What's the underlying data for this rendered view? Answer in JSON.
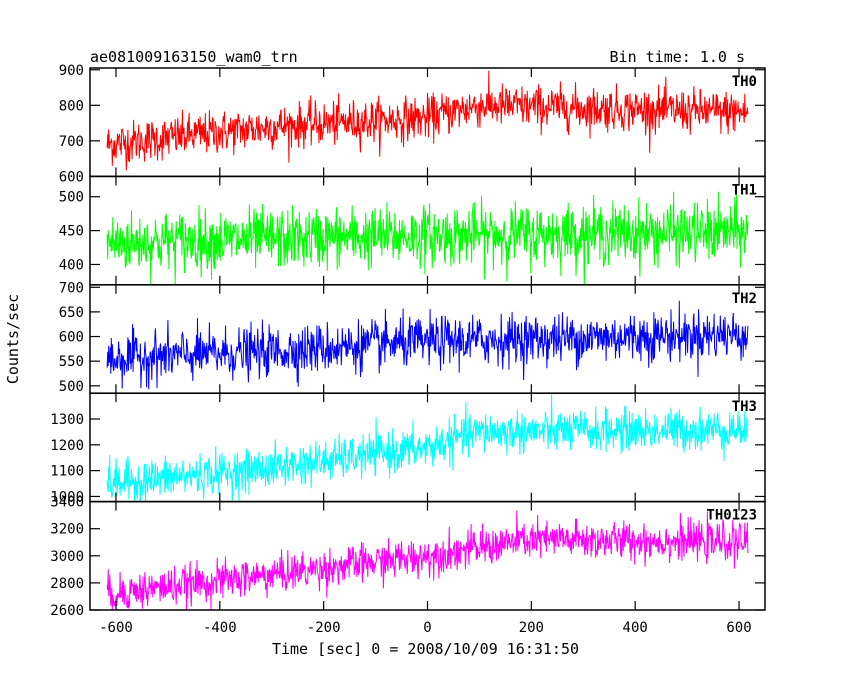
{
  "chart_data": {
    "type": "line",
    "title": "ae081009163150_wam0_trn",
    "subtitle": "Bin time: 1.0 s",
    "xlabel": "Time [sec] 0 = 2008/10/09 16:31:50",
    "ylabel": "Counts/sec",
    "xlim": [
      -650,
      650
    ],
    "x_ticks": [
      -600,
      -400,
      -200,
      0,
      200,
      400,
      600
    ],
    "x_range_data": [
      -617,
      617
    ],
    "grid": false,
    "panels": [
      {
        "name": "TH0",
        "color": "#ff0000",
        "ylim": [
          600,
          905
        ],
        "yticks": [
          600,
          700,
          800,
          900
        ],
        "trend": [
          [
            -617,
            690
          ],
          [
            -300,
            740
          ],
          [
            0,
            765
          ],
          [
            100,
            800
          ],
          [
            617,
            780
          ]
        ],
        "noise_sd": 30
      },
      {
        "name": "TH1",
        "color": "#00ff00",
        "ylim": [
          370,
          530
        ],
        "yticks": [
          400,
          450,
          500
        ],
        "trend": [
          [
            -617,
            432
          ],
          [
            0,
            443
          ],
          [
            617,
            448
          ]
        ],
        "noise_sd": 22
      },
      {
        "name": "TH2",
        "color": "#0000ff",
        "ylim": [
          485,
          705
        ],
        "yticks": [
          500,
          550,
          600,
          650,
          700
        ],
        "trend": [
          [
            -617,
            555
          ],
          [
            -300,
            570
          ],
          [
            0,
            590
          ],
          [
            617,
            605
          ]
        ],
        "noise_sd": 25
      },
      {
        "name": "TH3",
        "color": "#00ffff",
        "ylim": [
          980,
          1400
        ],
        "yticks": [
          1000,
          1100,
          1200,
          1300
        ],
        "trend": [
          [
            -617,
            1050
          ],
          [
            -300,
            1110
          ],
          [
            0,
            1190
          ],
          [
            100,
            1250
          ],
          [
            617,
            1260
          ]
        ],
        "noise_sd": 40
      },
      {
        "name": "TH0123",
        "color": "#ff00ff",
        "ylim": [
          2600,
          3400
        ],
        "yticks": [
          2600,
          2800,
          3000,
          3200,
          3400
        ],
        "trend": [
          [
            -617,
            2720
          ],
          [
            -300,
            2860
          ],
          [
            0,
            3000
          ],
          [
            200,
            3120
          ],
          [
            617,
            3100
          ]
        ],
        "noise_sd": 70
      }
    ]
  }
}
